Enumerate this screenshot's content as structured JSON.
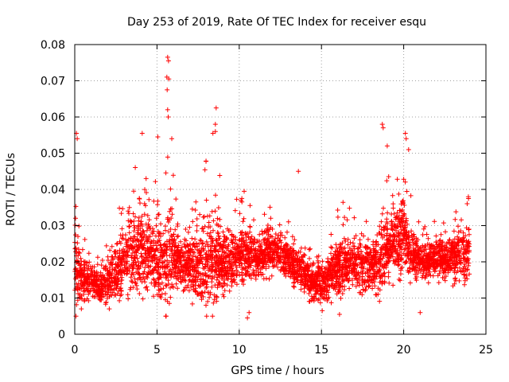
{
  "chart_data": {
    "type": "scatter",
    "title": "Day 253 of 2019, Rate Of TEC Index for receiver esqu",
    "xlabel": "GPS time / hours",
    "ylabel": "ROTI / TECUs",
    "xlim": [
      0,
      25
    ],
    "ylim": [
      0,
      0.08
    ],
    "xticks": [
      "0",
      "5",
      "10",
      "15",
      "20",
      "25"
    ],
    "yticks": [
      "0",
      "0.01",
      "0.02",
      "0.03",
      "0.04",
      "0.05",
      "0.06",
      "0.07",
      "0.08"
    ],
    "grid": true,
    "marker": "+",
    "color": "#ff0000",
    "series": [
      {
        "name": "ROTI",
        "profile": [
          [
            0.0,
            0.02,
            0.05
          ],
          [
            0.5,
            0.016,
            0.03
          ],
          [
            1.0,
            0.015,
            0.025
          ],
          [
            1.5,
            0.013,
            0.022
          ],
          [
            2.0,
            0.014,
            0.025
          ],
          [
            2.5,
            0.017,
            0.03
          ],
          [
            3.0,
            0.02,
            0.04
          ],
          [
            3.5,
            0.022,
            0.045
          ],
          [
            4.0,
            0.024,
            0.05
          ],
          [
            4.5,
            0.022,
            0.042
          ],
          [
            5.0,
            0.021,
            0.045
          ],
          [
            5.5,
            0.02,
            0.05
          ],
          [
            6.0,
            0.022,
            0.045
          ],
          [
            6.5,
            0.019,
            0.035
          ],
          [
            7.0,
            0.018,
            0.032
          ],
          [
            7.5,
            0.019,
            0.04
          ],
          [
            8.0,
            0.021,
            0.048
          ],
          [
            8.5,
            0.02,
            0.05
          ],
          [
            9.0,
            0.019,
            0.04
          ],
          [
            9.5,
            0.02,
            0.04
          ],
          [
            10.0,
            0.022,
            0.038
          ],
          [
            10.5,
            0.022,
            0.04
          ],
          [
            11.0,
            0.021,
            0.036
          ],
          [
            11.5,
            0.022,
            0.036
          ],
          [
            12.0,
            0.023,
            0.035
          ],
          [
            12.5,
            0.022,
            0.034
          ],
          [
            13.0,
            0.02,
            0.032
          ],
          [
            13.5,
            0.018,
            0.03
          ],
          [
            14.0,
            0.016,
            0.028
          ],
          [
            14.5,
            0.014,
            0.024
          ],
          [
            15.0,
            0.014,
            0.025
          ],
          [
            15.5,
            0.016,
            0.032
          ],
          [
            16.0,
            0.018,
            0.038
          ],
          [
            16.5,
            0.019,
            0.035
          ],
          [
            17.0,
            0.019,
            0.035
          ],
          [
            17.5,
            0.019,
            0.036
          ],
          [
            18.0,
            0.018,
            0.03
          ],
          [
            18.5,
            0.02,
            0.04
          ],
          [
            19.0,
            0.024,
            0.048
          ],
          [
            19.5,
            0.025,
            0.045
          ],
          [
            20.0,
            0.028,
            0.05
          ],
          [
            20.5,
            0.022,
            0.038
          ],
          [
            21.0,
            0.02,
            0.03
          ],
          [
            21.5,
            0.02,
            0.03
          ],
          [
            22.0,
            0.021,
            0.032
          ],
          [
            22.5,
            0.021,
            0.034
          ],
          [
            23.0,
            0.021,
            0.035
          ],
          [
            23.5,
            0.022,
            0.038
          ],
          [
            24.0,
            0.022,
            0.04
          ]
        ],
        "outliers": [
          [
            5.65,
            0.0765
          ],
          [
            5.7,
            0.0755
          ],
          [
            5.6,
            0.071
          ],
          [
            5.72,
            0.0705
          ],
          [
            5.62,
            0.0675
          ],
          [
            5.65,
            0.062
          ],
          [
            5.68,
            0.06
          ],
          [
            8.6,
            0.0625
          ],
          [
            8.55,
            0.058
          ],
          [
            18.7,
            0.058
          ],
          [
            18.75,
            0.057
          ],
          [
            20.1,
            0.0555
          ],
          [
            20.15,
            0.054
          ],
          [
            0.1,
            0.0555
          ],
          [
            0.15,
            0.054
          ],
          [
            4.1,
            0.0555
          ],
          [
            5.05,
            0.0545
          ],
          [
            5.9,
            0.054
          ],
          [
            8.4,
            0.0555
          ],
          [
            8.55,
            0.056
          ],
          [
            10.5,
            0.0045
          ],
          [
            10.6,
            0.006
          ],
          [
            15.05,
            0.0065
          ],
          [
            16.1,
            0.0055
          ],
          [
            21.0,
            0.006
          ],
          [
            2.1,
            0.007
          ],
          [
            0.4,
            0.007
          ],
          [
            19.0,
            0.052
          ],
          [
            20.3,
            0.051
          ],
          [
            13.6,
            0.045
          ]
        ]
      }
    ]
  }
}
